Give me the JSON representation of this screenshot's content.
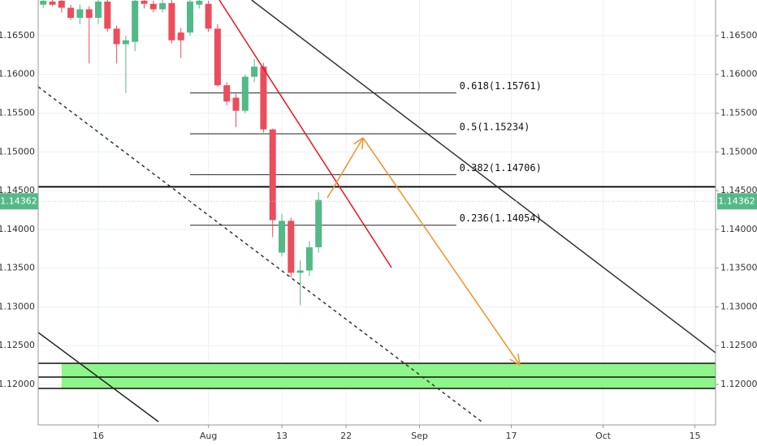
{
  "chart_data": {
    "type": "candlestick",
    "x": [
      -6,
      -5,
      -4,
      -3,
      -2,
      -1,
      0,
      1,
      2,
      3,
      4,
      5,
      6,
      7,
      8,
      9,
      10,
      11,
      12,
      13,
      14,
      15,
      16,
      17,
      18,
      19,
      20,
      21,
      22,
      23,
      24
    ],
    "open": [
      1.169,
      1.1694,
      1.1695,
      1.1686,
      1.1673,
      1.1684,
      1.1673,
      1.1694,
      1.1659,
      1.1639,
      1.1642,
      1.1695,
      1.1691,
      1.1684,
      1.1692,
      1.1654,
      1.1654,
      1.169,
      1.1691,
      1.1659,
      1.1586,
      1.157,
      1.1553,
      1.1597,
      1.161,
      1.1529,
      1.137,
      1.1411,
      1.1344,
      1.1347,
      1.1377
    ],
    "high": [
      1.1698,
      1.1698,
      1.1698,
      1.169,
      1.169,
      1.1688,
      1.1698,
      1.1698,
      1.1663,
      1.165,
      1.1698,
      1.1698,
      1.1695,
      1.1698,
      1.1698,
      1.166,
      1.1698,
      1.1698,
      1.1695,
      1.1665,
      1.159,
      1.1575,
      1.16,
      1.162,
      1.1615,
      1.153,
      1.142,
      1.1415,
      1.136,
      1.1385,
      1.1448
    ],
    "low": [
      1.1686,
      1.1688,
      1.168,
      1.167,
      1.1665,
      1.1614,
      1.1665,
      1.1655,
      1.1614,
      1.1576,
      1.163,
      1.1685,
      1.168,
      1.168,
      1.164,
      1.1621,
      1.165,
      1.1685,
      1.1655,
      1.1584,
      1.156,
      1.1532,
      1.155,
      1.159,
      1.1525,
      1.139,
      1.1365,
      1.1338,
      1.1302,
      1.134,
      1.137
    ],
    "close": [
      1.1695,
      1.169,
      1.1686,
      1.1673,
      1.1684,
      1.1673,
      1.1694,
      1.1659,
      1.1639,
      1.1644,
      1.1695,
      1.1691,
      1.1684,
      1.1692,
      1.1644,
      1.1644,
      1.1694,
      1.1695,
      1.1659,
      1.1586,
      1.1565,
      1.1553,
      1.1597,
      1.161,
      1.1529,
      1.1412,
      1.1411,
      1.1344,
      1.1347,
      1.1377,
      1.1438
    ],
    "up_color": "#53b987",
    "down_color": "#eb4d5c",
    "xlim": [
      -6.55,
      67.26
    ],
    "ylim": [
      1.11477,
      1.1696
    ],
    "xticks": [
      {
        "value": 0,
        "label": "16"
      },
      {
        "value": 12,
        "label": "Aug"
      },
      {
        "value": 20,
        "label": "13"
      },
      {
        "value": 27,
        "label": "22"
      },
      {
        "value": 35,
        "label": "Sep"
      },
      {
        "value": 45,
        "label": "17"
      },
      {
        "value": 55,
        "label": "Oct"
      },
      {
        "value": 65,
        "label": "15"
      }
    ],
    "yticks": [
      {
        "value": 1.12,
        "label": "1.12000"
      },
      {
        "value": 1.125,
        "label": "1.12500"
      },
      {
        "value": 1.13,
        "label": "1.13000"
      },
      {
        "value": 1.135,
        "label": "1.13500"
      },
      {
        "value": 1.14,
        "label": "1.14000"
      },
      {
        "value": 1.145,
        "label": "1.14500"
      },
      {
        "value": 1.15,
        "label": "1.15000"
      },
      {
        "value": 1.155,
        "label": "1.15500"
      },
      {
        "value": 1.16,
        "label": "1.16000"
      },
      {
        "value": 1.165,
        "label": "1.16500"
      }
    ],
    "grid": true,
    "last_price": 1.14362,
    "last_price_color": "#53b987",
    "fib": [
      {
        "label": "0.618(1.15761)",
        "value": 1.15761,
        "x": [
          10,
          39
        ]
      },
      {
        "label": "0.5(1.15234)",
        "value": 1.15234,
        "x": [
          10,
          39
        ]
      },
      {
        "label": "0.382(1.14706)",
        "value": 1.14706,
        "x": [
          10,
          39
        ]
      },
      {
        "label": "0.236(1.14054)",
        "value": 1.14054,
        "x": [
          10,
          39
        ]
      }
    ],
    "hlines": [
      {
        "value": 1.1455,
        "color": "#111"
      }
    ],
    "zone": {
      "y": [
        1.11948,
        1.12272
      ],
      "mid": 1.12094,
      "x_start": -4,
      "color": "#8ef58a"
    },
    "lines": [
      {
        "x": [
          16.7,
          67.26
        ],
        "y": [
          1.1696,
          1.12408
        ],
        "color": "#333",
        "dash": false,
        "arrow": false
      },
      {
        "x": [
          -6.55,
          41.77
        ],
        "y": [
          1.15841,
          1.11519
        ],
        "color": "#333",
        "dash": true,
        "arrow": false
      },
      {
        "x": [
          -6.55,
          6.55
        ],
        "y": [
          1.1267,
          1.11519
        ],
        "color": "#222",
        "dash": false,
        "arrow": false
      },
      {
        "x": [
          13.19,
          31.95
        ],
        "y": [
          1.1696,
          1.13507
        ],
        "color": "#e8141e",
        "dash": false,
        "arrow": false
      },
      {
        "x": [
          24.96,
          28.85
        ],
        "y": [
          1.14407,
          1.15181
        ],
        "color": "#f0922a",
        "dash": false,
        "arrow": true
      },
      {
        "x": [
          28.85,
          45.93
        ],
        "y": [
          1.15181,
          1.12251
        ],
        "color": "#f0922a",
        "dash": false,
        "arrow": true
      }
    ]
  }
}
